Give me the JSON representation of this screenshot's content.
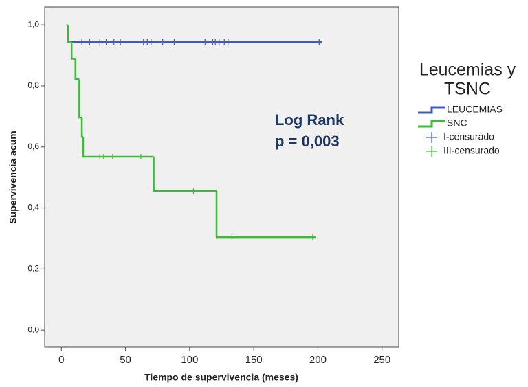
{
  "chart_data": {
    "type": "km",
    "x_label": "Tiempo de supervivencia (meses)",
    "y_label": "Supervivencia acum",
    "annotation": [
      "Log Rank",
      "p = 0,003"
    ],
    "legend_title": [
      "Leucemias y",
      "TSNC"
    ],
    "xlim": [
      -13,
      263
    ],
    "xticks": [
      0,
      50,
      100,
      150,
      200,
      250
    ],
    "ylim": [
      -0.056,
      1.059
    ],
    "yticks": [
      {
        "value": 0,
        "label": "0,0"
      },
      {
        "value": 0.2,
        "label": "0,2"
      },
      {
        "value": 0.4,
        "label": "0,4"
      },
      {
        "value": 0.6,
        "label": "0,6"
      },
      {
        "value": 0.8,
        "label": "0,8"
      },
      {
        "value": 1,
        "label": "1,0"
      }
    ],
    "series": [
      {
        "name": "LEUCEMIAS",
        "kind": "step",
        "color": "#3f5cb3",
        "x": [
          4,
          5,
          203
        ],
        "values": [
          1.0,
          0.944,
          0.944
        ]
      },
      {
        "name": "SNC",
        "kind": "step",
        "color": "#3dba3a",
        "x": [
          4,
          5,
          8,
          11,
          14,
          16,
          17,
          72,
          121,
          198
        ],
        "values": [
          1.0,
          0.944,
          0.889,
          0.822,
          0.696,
          0.633,
          0.568,
          0.455,
          0.304,
          0.304
        ]
      },
      {
        "name": "I-censurado",
        "kind": "censor",
        "color": "#3f5cb3",
        "x": [
          16,
          22,
          30,
          35,
          41,
          46,
          64,
          67,
          70,
          79,
          88,
          112,
          118,
          120,
          123,
          127,
          130,
          201
        ],
        "values": [
          0.944,
          0.944,
          0.944,
          0.944,
          0.944,
          0.944,
          0.944,
          0.944,
          0.944,
          0.944,
          0.944,
          0.944,
          0.944,
          0.944,
          0.944,
          0.944,
          0.944,
          0.944
        ]
      },
      {
        "name": "III-censurado",
        "kind": "censor",
        "color": "#3dba3a",
        "x": [
          30,
          33,
          40,
          62,
          103,
          133,
          196
        ],
        "values": [
          0.568,
          0.568,
          0.568,
          0.568,
          0.455,
          0.304,
          0.304
        ]
      }
    ]
  }
}
